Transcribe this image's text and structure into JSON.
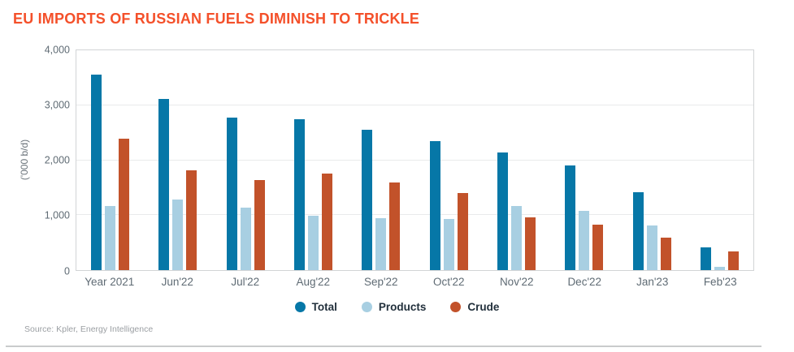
{
  "title": "EU IMPORTS OF RUSSIAN FUELS DIMINISH TO TRICKLE",
  "source": "Source: Kpler, Energy Intelligence",
  "colors": {
    "title": "#f4502a",
    "total": "#0677a7",
    "products": "#a8cfe2",
    "crude": "#c2522a",
    "axis_text": "#5f6b74",
    "gridline": "#e9eaeb"
  },
  "chart_data": {
    "type": "bar",
    "title": "EU IMPORTS OF RUSSIAN FUELS DIMINISH TO TRICKLE",
    "xlabel": "",
    "ylabel": "('000 b/d)",
    "ylim": [
      0,
      4000
    ],
    "yticks": [
      {
        "value": 0,
        "label": "0"
      },
      {
        "value": 1000,
        "label": "1,000"
      },
      {
        "value": 2000,
        "label": "2,000"
      },
      {
        "value": 3000,
        "label": "3,000"
      },
      {
        "value": 4000,
        "label": "4,000"
      }
    ],
    "gridlines": [
      1000,
      2000,
      3000
    ],
    "grid": "horizontal",
    "legend_position": "bottom",
    "categories": [
      "Year 2021",
      "Jun'22",
      "Jul'22",
      "Aug'22",
      "Sep'22",
      "Oct'22",
      "Nov'22",
      "Dec'22",
      "Jan'23",
      "Feb'23"
    ],
    "series": [
      {
        "name": "Total",
        "color": "#0677a7",
        "values": [
          3560,
          3110,
          2780,
          2740,
          2550,
          2340,
          2140,
          1900,
          1410,
          420
        ]
      },
      {
        "name": "Products",
        "color": "#a8cfe2",
        "values": [
          1170,
          1280,
          1130,
          990,
          950,
          930,
          1160,
          1080,
          810,
          60
        ]
      },
      {
        "name": "Crude",
        "color": "#c2522a",
        "values": [
          2390,
          1810,
          1640,
          1750,
          1600,
          1400,
          960,
          830,
          590,
          340
        ]
      }
    ]
  }
}
